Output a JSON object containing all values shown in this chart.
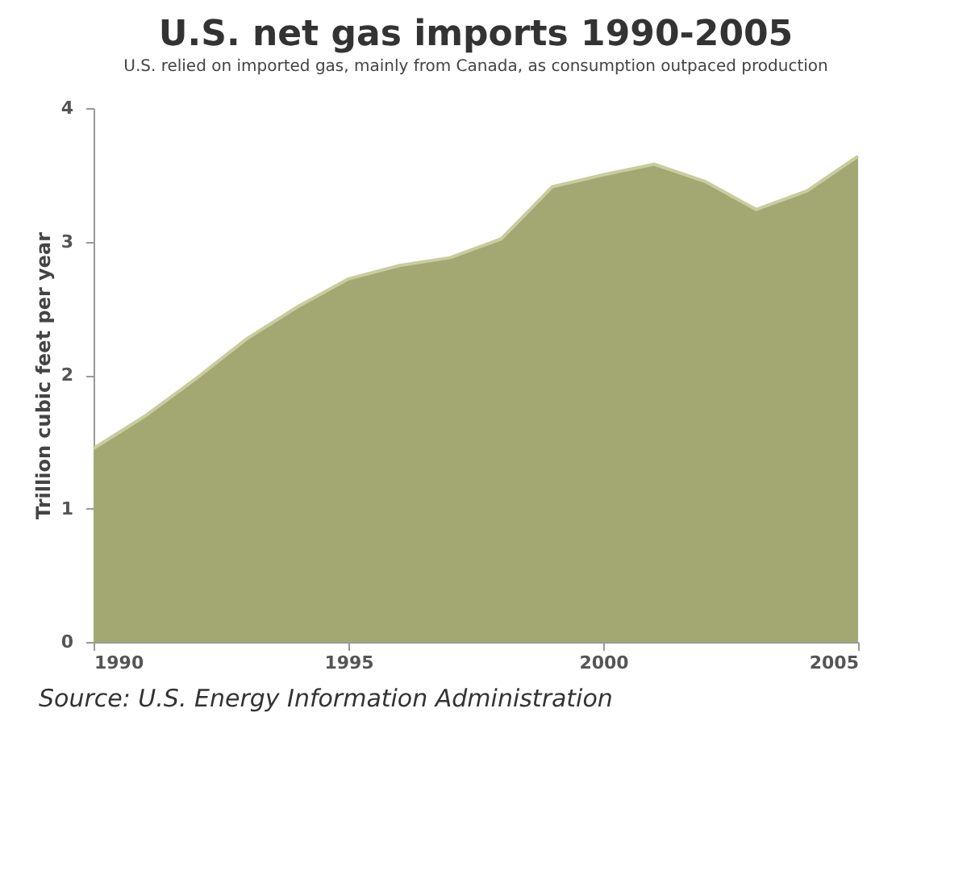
{
  "chart_data": {
    "type": "area",
    "title": "U.S. net gas imports 1990-2005",
    "subtitle": "U.S. relied on imported gas, mainly from Canada, as consumption outpaced production",
    "ylabel": "Trillion cubic feet per year",
    "x": [
      1990,
      1991,
      1992,
      1993,
      1994,
      1995,
      1996,
      1997,
      1998,
      1999,
      2000,
      2001,
      2002,
      2003,
      2004,
      2005
    ],
    "series": [
      {
        "color": "#a3a872",
        "values": [
          1.45,
          1.69,
          1.97,
          2.27,
          2.51,
          2.72,
          2.82,
          2.88,
          3.02,
          3.41,
          3.5,
          3.58,
          3.45,
          3.24,
          3.38,
          3.64
        ]
      }
    ],
    "xlim": [
      1990,
      2005
    ],
    "xticks": [
      1990,
      1995,
      2000,
      2005
    ],
    "ylim": [
      0,
      4
    ],
    "yticks": [
      0,
      1,
      2,
      3,
      4
    ],
    "grid": false,
    "annotations": [
      "Source: U.S. Energy Information Administration"
    ]
  }
}
